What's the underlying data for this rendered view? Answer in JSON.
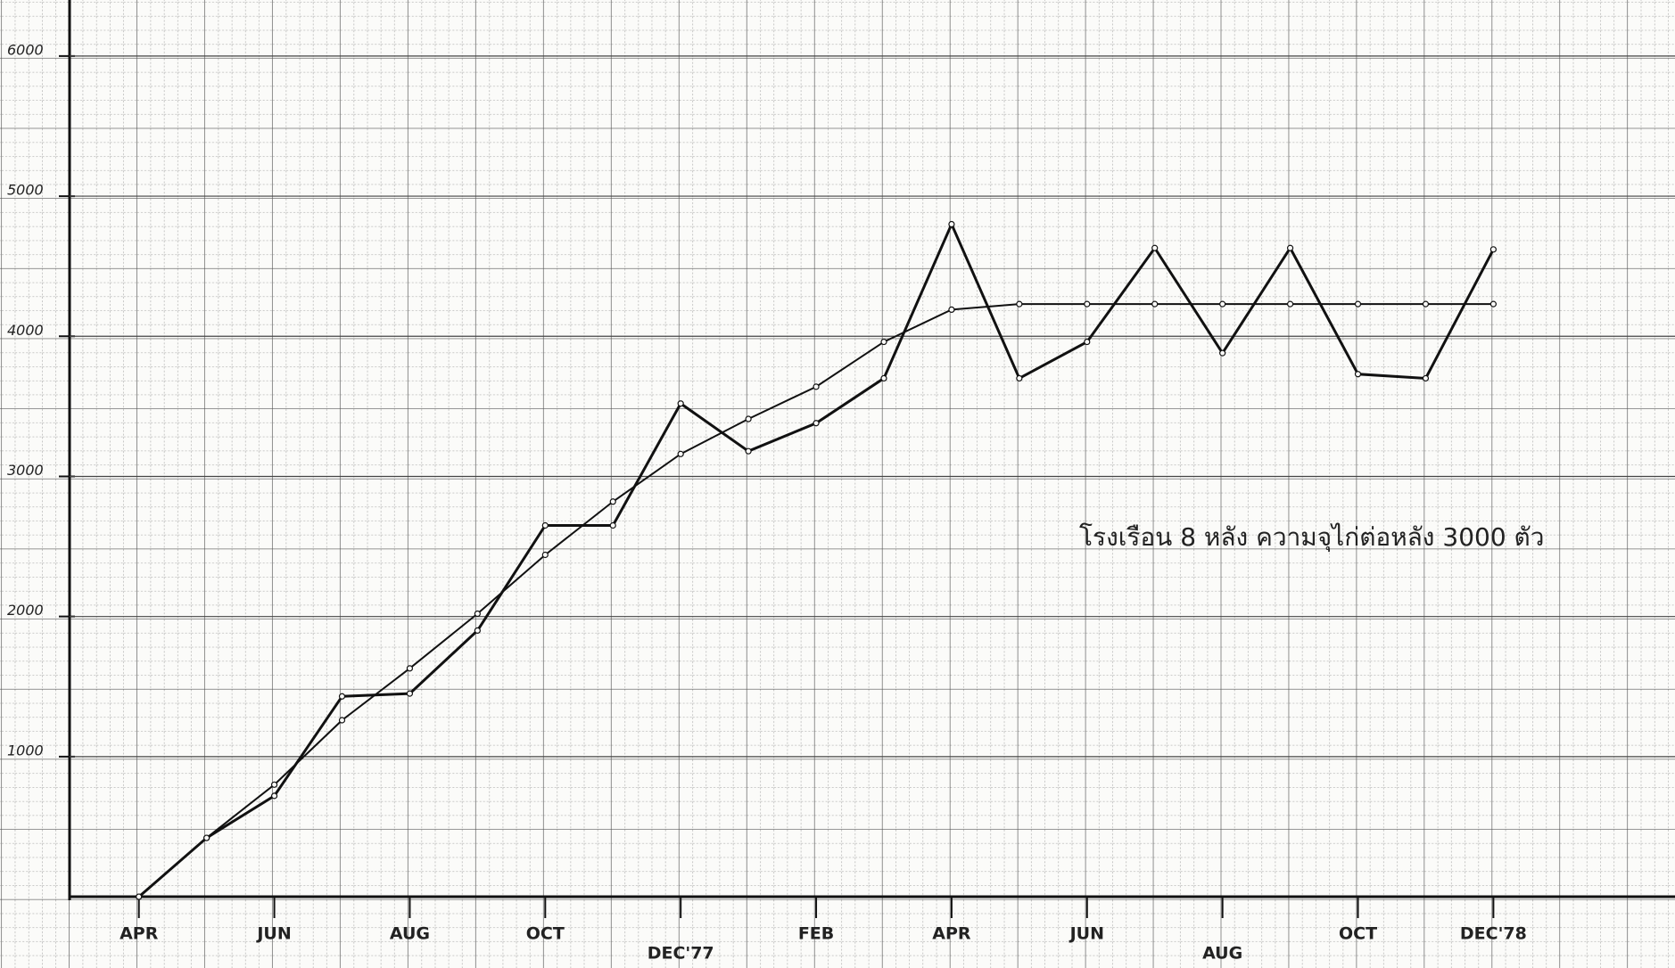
{
  "chart_data": {
    "type": "line",
    "annotation": "โรงเรือน 8 หลัง ความจุไก่ต่อหลัง 3000 ตัว",
    "categories": [
      "APR",
      null,
      "JUN",
      null,
      "AUG",
      null,
      "OCT",
      null,
      "DEC'77",
      null,
      "FEB",
      null,
      "APR",
      null,
      "JUN",
      null,
      "AUG",
      null,
      "OCT",
      null,
      "DEC'78"
    ],
    "series": [
      {
        "color": "#111111",
        "values": [
          0,
          420,
          720,
          1430,
          1450,
          1900,
          2650,
          2650,
          3520,
          3180,
          3380,
          3700,
          4800,
          3700,
          3960,
          4630,
          3880,
          4630,
          3730,
          3700,
          4620
        ]
      },
      {
        "color": "#111111",
        "values": [
          0,
          420,
          800,
          1260,
          1630,
          2020,
          2440,
          2820,
          3160,
          3410,
          3640,
          3960,
          4190,
          4230,
          4230,
          4230,
          4230,
          4230,
          4230,
          4230,
          4230
        ]
      }
    ],
    "ylim": [
      0,
      6400
    ],
    "yticks": [
      1000,
      2000,
      3000,
      4000,
      5000,
      6000
    ],
    "grid": true
  }
}
